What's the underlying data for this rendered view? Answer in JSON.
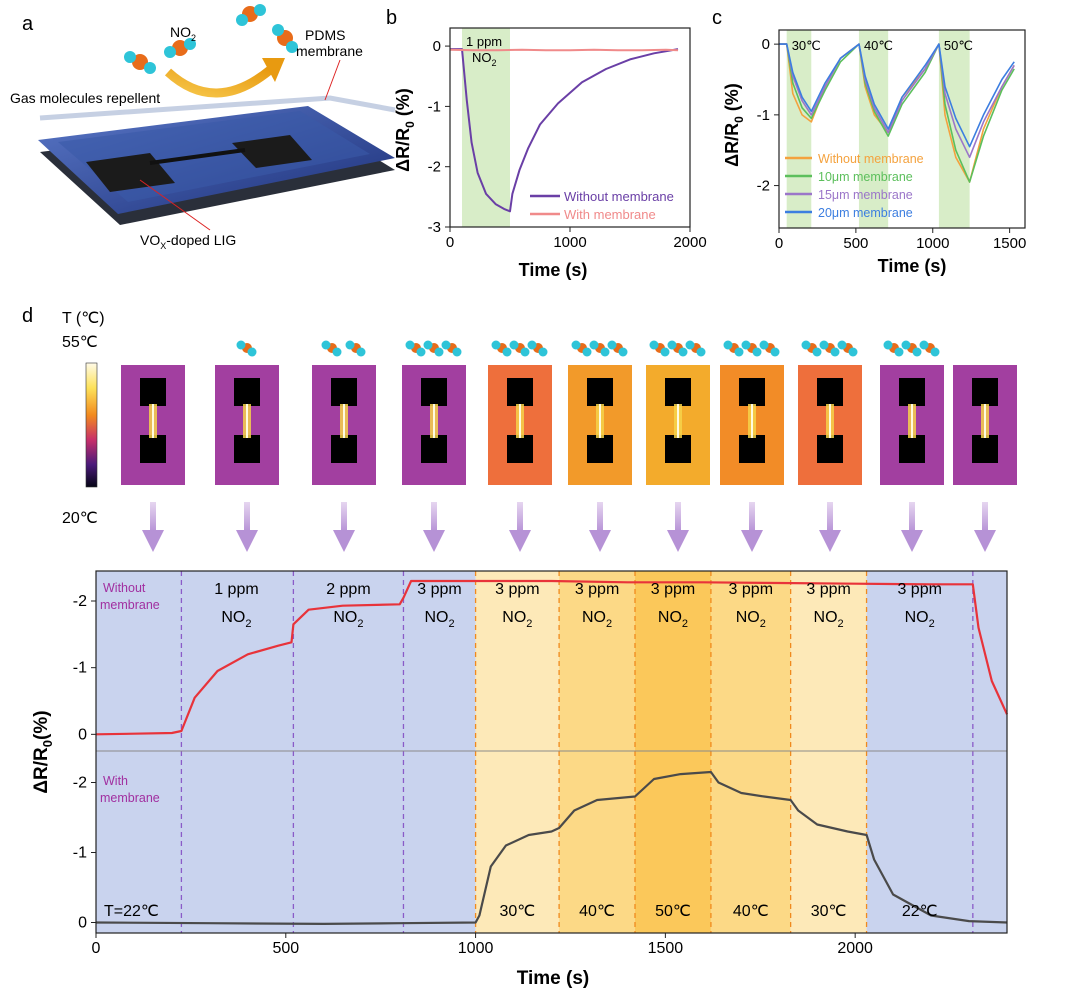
{
  "panel_labels": {
    "a": "a",
    "b": "b",
    "c": "c",
    "d": "d"
  },
  "panel_a": {
    "molecule_label": "NO",
    "molecule_sub": "2",
    "membrane_label_1": "PDMS",
    "membrane_label_2": "membrane",
    "repellent_label": "Gas molecules repellent",
    "lig_label_pre": "VO",
    "lig_label_sub": "X",
    "lig_label_post": "-doped LIG"
  },
  "colors": {
    "purple": "#6a3fa6",
    "pink": "#f08a8a",
    "green_band": "#d8edc8",
    "orange": "#f4a23e",
    "green": "#5cbf5c",
    "violet": "#9b76c9",
    "blue": "#3c7ee0",
    "red": "#e8333a",
    "gray": "#4a4a4a",
    "bg_blue": "#c9d3ee",
    "band_30": "#fde9b8",
    "band_40": "#fcd986",
    "band_50": "#fbc85a",
    "ir_purple": "#a23fa0",
    "ir_orange1": "#ee6f3c",
    "ir_orange2": "#f29a2a",
    "ir_orange3": "#f3ab2c",
    "ir_orange4": "#f28c27"
  },
  "chart_data": [
    {
      "id": "b",
      "type": "line",
      "xlabel": "Time (s)",
      "ylabel_main": "ΔR/R",
      "ylabel_sub": "0",
      "ylabel_unit": " (%)",
      "xlim": [
        0,
        2000
      ],
      "ylim": [
        -3,
        0.3
      ],
      "xticks": [
        0,
        1000,
        2000
      ],
      "yticks": [
        0,
        -1,
        -2,
        -3
      ],
      "band": {
        "x0": 100,
        "x1": 500,
        "label1": "1 ppm",
        "label2": "NO",
        "label2_sub": "2"
      },
      "series": [
        {
          "name": "Without membrane",
          "color": "#6a3fa6",
          "x": [
            0,
            100,
            140,
            180,
            230,
            300,
            380,
            450,
            500,
            520,
            580,
            650,
            750,
            900,
            1100,
            1300,
            1500,
            1700,
            1900
          ],
          "y": [
            -0.05,
            -0.05,
            -0.9,
            -1.6,
            -2.1,
            -2.45,
            -2.62,
            -2.7,
            -2.74,
            -2.45,
            -2.05,
            -1.7,
            -1.3,
            -0.95,
            -0.6,
            -0.38,
            -0.22,
            -0.12,
            -0.05
          ]
        },
        {
          "name": "With membrane",
          "color": "#f08a8a",
          "x": [
            0,
            200,
            400,
            600,
            800,
            1000,
            1200,
            1400,
            1600,
            1800,
            1900
          ],
          "y": [
            -0.06,
            -0.07,
            -0.07,
            -0.06,
            -0.07,
            -0.07,
            -0.06,
            -0.07,
            -0.07,
            -0.06,
            -0.07
          ]
        }
      ]
    },
    {
      "id": "c",
      "type": "line",
      "xlabel": "Time (s)",
      "ylabel_main": "ΔR/R",
      "ylabel_sub": "0",
      "ylabel_unit": " (%)",
      "xlim": [
        0,
        1600
      ],
      "ylim": [
        -2.6,
        0.2
      ],
      "xticks": [
        0,
        500,
        1000,
        1500
      ],
      "yticks": [
        0,
        -1,
        -2
      ],
      "bands": [
        {
          "x0": 50,
          "x1": 210,
          "label": "30℃"
        },
        {
          "x0": 520,
          "x1": 710,
          "label": "40℃"
        },
        {
          "x0": 1040,
          "x1": 1240,
          "label": "50℃"
        }
      ],
      "series": [
        {
          "name": "Without membrane",
          "color": "#f4a23e",
          "x": [
            0,
            50,
            90,
            150,
            210,
            300,
            400,
            520,
            560,
            620,
            710,
            800,
            950,
            1040,
            1080,
            1150,
            1240,
            1330,
            1450,
            1530
          ],
          "y": [
            0,
            0,
            -0.7,
            -1.0,
            -1.1,
            -0.6,
            -0.2,
            0,
            -0.6,
            -1.0,
            -1.25,
            -0.75,
            -0.35,
            0,
            -1.0,
            -1.6,
            -1.95,
            -1.2,
            -0.6,
            -0.3
          ]
        },
        {
          "name": "10μm membrane",
          "color": "#5cbf5c",
          "x": [
            0,
            50,
            90,
            150,
            210,
            300,
            400,
            520,
            560,
            620,
            710,
            800,
            950,
            1040,
            1080,
            1150,
            1240,
            1330,
            1450,
            1530
          ],
          "y": [
            0,
            0,
            -0.55,
            -0.9,
            -1.05,
            -0.65,
            -0.25,
            0,
            -0.55,
            -0.95,
            -1.3,
            -0.85,
            -0.4,
            0,
            -0.85,
            -1.5,
            -1.95,
            -1.3,
            -0.65,
            -0.35
          ]
        },
        {
          "name": "15μm membrane",
          "color": "#9b76c9",
          "x": [
            0,
            50,
            90,
            150,
            210,
            300,
            400,
            520,
            560,
            620,
            710,
            800,
            950,
            1040,
            1080,
            1150,
            1240,
            1330,
            1450,
            1530
          ],
          "y": [
            0,
            0,
            -0.45,
            -0.8,
            -1.0,
            -0.6,
            -0.2,
            0,
            -0.5,
            -0.9,
            -1.25,
            -0.8,
            -0.35,
            0,
            -0.7,
            -1.2,
            -1.6,
            -1.1,
            -0.6,
            -0.3
          ]
        },
        {
          "name": "20μm membrane",
          "color": "#3c7ee0",
          "x": [
            0,
            50,
            90,
            150,
            210,
            300,
            400,
            520,
            560,
            620,
            710,
            800,
            950,
            1040,
            1080,
            1150,
            1240,
            1330,
            1450,
            1530
          ],
          "y": [
            0,
            0,
            -0.4,
            -0.75,
            -0.95,
            -0.55,
            -0.2,
            0,
            -0.45,
            -0.85,
            -1.2,
            -0.75,
            -0.3,
            0,
            -0.6,
            -1.05,
            -1.45,
            -1.0,
            -0.5,
            -0.25
          ]
        }
      ]
    },
    {
      "id": "d",
      "type": "line",
      "xlabel": "Time (s)",
      "ylabel_main": "ΔR/R",
      "ylabel_sub": "0",
      "ylabel_unit": "(%)",
      "xlim": [
        0,
        2400
      ],
      "xticks": [
        0,
        500,
        1000,
        1500,
        2000
      ],
      "top": {
        "ylim": [
          0.25,
          -2.45
        ],
        "yticks": [
          0,
          -1,
          -2
        ],
        "label_1": "Without",
        "label_2": "membrane",
        "series": {
          "name": "Without membrane",
          "color": "#e8333a",
          "x": [
            0,
            100,
            200,
            225,
            260,
            320,
            400,
            480,
            515,
            520,
            560,
            650,
            800,
            810,
            830,
            1000,
            1200,
            1400,
            1600,
            1800,
            2000,
            2200,
            2310,
            2325,
            2360,
            2400
          ],
          "y": [
            0,
            -0.01,
            -0.02,
            -0.05,
            -0.55,
            -0.95,
            -1.2,
            -1.33,
            -1.38,
            -1.65,
            -1.87,
            -1.93,
            -1.95,
            -2.05,
            -2.3,
            -2.3,
            -2.3,
            -2.28,
            -2.28,
            -2.27,
            -2.26,
            -2.25,
            -2.25,
            -1.6,
            -0.8,
            -0.3
          ]
        }
      },
      "bottom": {
        "ylim": [
          0.15,
          -2.45
        ],
        "yticks": [
          0,
          -1,
          -2
        ],
        "label_1": "With",
        "label_2": "membrane",
        "series": {
          "name": "With membrane",
          "color": "#4a4a4a",
          "x": [
            0,
            300,
            600,
            800,
            1000,
            1010,
            1040,
            1080,
            1140,
            1200,
            1220,
            1260,
            1320,
            1420,
            1430,
            1470,
            1540,
            1620,
            1640,
            1700,
            1760,
            1830,
            1850,
            1900,
            1980,
            2030,
            2050,
            2100,
            2200,
            2300,
            2400
          ],
          "y": [
            0,
            0.01,
            0.02,
            0.01,
            0.0,
            -0.1,
            -0.8,
            -1.1,
            -1.25,
            -1.3,
            -1.35,
            -1.6,
            -1.75,
            -1.8,
            -1.85,
            -2.05,
            -2.12,
            -2.15,
            -2.0,
            -1.85,
            -1.8,
            -1.75,
            -1.6,
            -1.4,
            -1.3,
            -1.25,
            -0.9,
            -0.4,
            -0.1,
            -0.02,
            0.0
          ]
        }
      },
      "dividers_purple": [
        225,
        520,
        810,
        2310
      ],
      "dividers_orange": [
        1000,
        1220,
        1420,
        1620,
        1830,
        2030
      ],
      "phases": [
        {
          "x0": 0,
          "x1": 1000,
          "kind": "bg"
        },
        {
          "x0": 1000,
          "x1": 1220,
          "kind": "t30"
        },
        {
          "x0": 1220,
          "x1": 1420,
          "kind": "t40"
        },
        {
          "x0": 1420,
          "x1": 1620,
          "kind": "t50"
        },
        {
          "x0": 1620,
          "x1": 1830,
          "kind": "t40"
        },
        {
          "x0": 1830,
          "x1": 2030,
          "kind": "t30"
        },
        {
          "x0": 2030,
          "x1": 2400,
          "kind": "bg"
        }
      ],
      "conc_labels": [
        {
          "x": 370,
          "line1": "1 ppm",
          "line2": "NO",
          "sub": "2"
        },
        {
          "x": 665,
          "line1": "2 ppm",
          "line2": "NO",
          "sub": "2"
        },
        {
          "x": 905,
          "line1": "3 ppm",
          "line2": "NO",
          "sub": "2"
        },
        {
          "x": 1110,
          "line1": "3 ppm",
          "line2": "NO",
          "sub": "2"
        },
        {
          "x": 1320,
          "line1": "3 ppm",
          "line2": "NO",
          "sub": "2"
        },
        {
          "x": 1520,
          "line1": "3 ppm",
          "line2": "NO",
          "sub": "2"
        },
        {
          "x": 1725,
          "line1": "3 ppm",
          "line2": "NO",
          "sub": "2"
        },
        {
          "x": 1930,
          "line1": "3 ppm",
          "line2": "NO",
          "sub": "2"
        },
        {
          "x": 2170,
          "line1": "3 ppm",
          "line2": "NO",
          "sub": "2"
        }
      ],
      "temp_labels": [
        {
          "x": 1110,
          "text": "30℃"
        },
        {
          "x": 1320,
          "text": "40℃"
        },
        {
          "x": 1520,
          "text": "50℃"
        },
        {
          "x": 1725,
          "text": "40℃"
        },
        {
          "x": 1930,
          "text": "30℃"
        },
        {
          "x": 2170,
          "text": "22℃"
        }
      ],
      "start_temp_label": "T=22℃"
    }
  ],
  "thermal": {
    "scale_title": "T (℃)",
    "scale_max": "55℃",
    "scale_min": "20℃",
    "tiles": [
      {
        "color": "ir_purple",
        "molecules": 0
      },
      {
        "color": "ir_purple",
        "molecules": 1
      },
      {
        "color": "ir_purple",
        "molecules": 2
      },
      {
        "color": "ir_purple",
        "molecules": 3
      },
      {
        "color": "ir_orange1",
        "molecules": 3
      },
      {
        "color": "ir_orange2",
        "molecules": 3
      },
      {
        "color": "ir_orange3",
        "molecules": 3
      },
      {
        "color": "ir_orange4",
        "molecules": 3
      },
      {
        "color": "ir_orange1",
        "molecules": 3
      },
      {
        "color": "ir_purple",
        "molecules": 3
      },
      {
        "color": "ir_purple",
        "molecules": 0
      }
    ]
  }
}
